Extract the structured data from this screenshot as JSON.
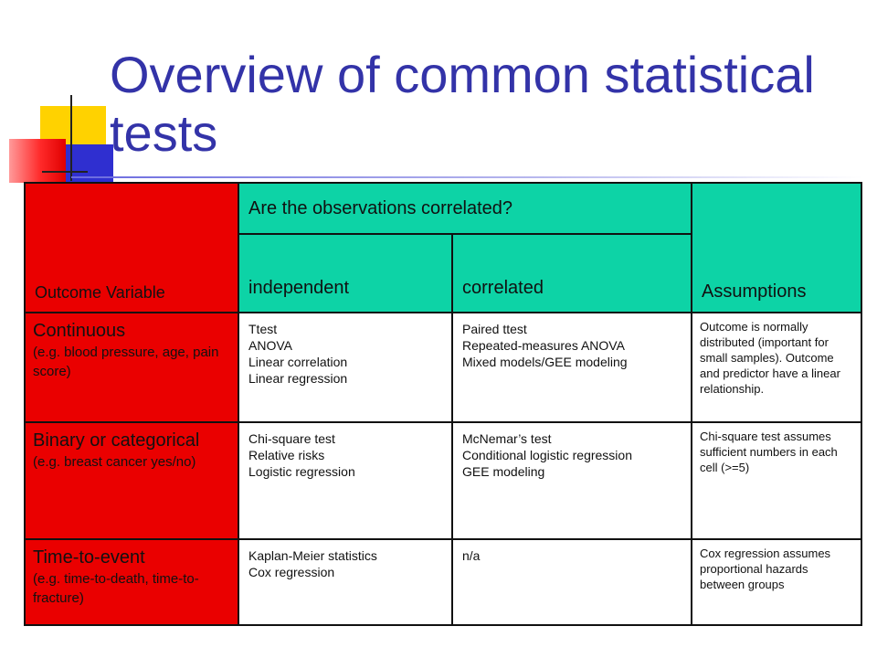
{
  "title": "Overview of common statistical tests",
  "header": {
    "outcome": "Outcome Variable",
    "question": "Are the observations correlated?",
    "independent": "independent",
    "correlated": "correlated",
    "assumptions": "Assumptions"
  },
  "rows": [
    {
      "name": "Continuous",
      "example": "(e.g. blood pressure, age, pain score)",
      "independent": [
        "Ttest",
        "ANOVA",
        "Linear correlation",
        "Linear regression"
      ],
      "correlated": [
        "Paired ttest",
        "Repeated-measures ANOVA",
        "Mixed models/GEE modeling"
      ],
      "assumptions": "Outcome is normally distributed (important for small samples). Outcome and predictor have a linear relationship."
    },
    {
      "name": "Binary or categorical",
      "example": "(e.g. breast cancer yes/no)",
      "independent": [
        "Chi-square test",
        "Relative risks",
        "Logistic regression"
      ],
      "correlated": [
        "McNemar’s test",
        "Conditional logistic regression",
        "GEE modeling"
      ],
      "assumptions": "Chi-square test assumes sufficient numbers in each cell (>=5)"
    },
    {
      "name": "Time-to-event",
      "example": "(e.g. time-to-death, time-to-fracture)",
      "independent": [
        "Kaplan-Meier statistics",
        "Cox regression"
      ],
      "correlated": [
        "n/a"
      ],
      "assumptions": "Cox regression assumes proportional hazards between groups"
    }
  ],
  "colors": {
    "title": "#3333a8",
    "category_bg": "#ea0000",
    "header_bg": "#0dd3a6",
    "deco_yellow": "#ffd200",
    "deco_blue": "#2f2fd0"
  }
}
